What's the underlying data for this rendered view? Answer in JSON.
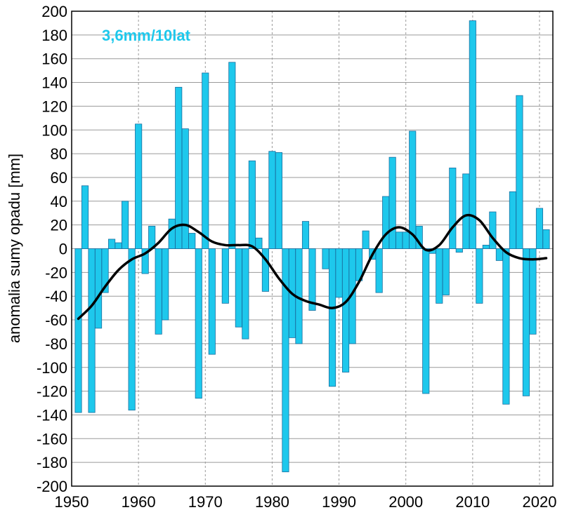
{
  "chart_data": {
    "type": "bar",
    "title": "",
    "xlabel": "",
    "ylabel": "anomalia sumy opadu [mm]",
    "annotation": "3,6mm/10lat",
    "xlim": [
      1950,
      2022
    ],
    "ylim": [
      -200,
      200
    ],
    "yticks": [
      -200,
      -180,
      -160,
      -140,
      -120,
      -100,
      -80,
      -60,
      -40,
      -20,
      0,
      20,
      40,
      60,
      80,
      100,
      120,
      140,
      160,
      180,
      200
    ],
    "xticks": [
      1950,
      1960,
      1970,
      1980,
      1990,
      2000,
      2010,
      2020
    ],
    "grid": true,
    "bar_color": "#1ec8ec",
    "bar_edge_color": "#1a6fa0",
    "line_color": "#000000",
    "annotation_color": "#1ec8ec",
    "series": [
      {
        "name": "anomalia",
        "type": "bar",
        "x": [
          1951,
          1952,
          1953,
          1954,
          1955,
          1956,
          1957,
          1958,
          1959,
          1960,
          1961,
          1962,
          1963,
          1964,
          1965,
          1966,
          1967,
          1968,
          1969,
          1970,
          1971,
          1972,
          1973,
          1974,
          1975,
          1976,
          1977,
          1978,
          1979,
          1980,
          1981,
          1982,
          1983,
          1984,
          1985,
          1986,
          1987,
          1988,
          1989,
          1990,
          1991,
          1992,
          1993,
          1994,
          1995,
          1996,
          1997,
          1998,
          1999,
          2000,
          2001,
          2002,
          2003,
          2004,
          2005,
          2006,
          2007,
          2008,
          2009,
          2010,
          2011,
          2012,
          2013,
          2014,
          2015,
          2016,
          2017,
          2018,
          2019,
          2020,
          2021
        ],
        "values": [
          -138,
          53,
          -138,
          -67,
          -37,
          8,
          5,
          40,
          -136,
          105,
          -21,
          19,
          -72,
          -60,
          25,
          136,
          101,
          13,
          -126,
          148,
          -89,
          0,
          -46,
          157,
          -66,
          -76,
          74,
          9,
          -36,
          82,
          81,
          -188,
          -75,
          -80,
          23,
          -52,
          0,
          -17,
          -116,
          -41,
          -104,
          -80,
          -27,
          15,
          -9,
          -37,
          44,
          77,
          14,
          14,
          99,
          19,
          -122,
          -4,
          -46,
          -39,
          68,
          -3,
          63,
          192,
          -46,
          3,
          31,
          -10,
          -131,
          48,
          129,
          -124,
          -72,
          34,
          16
        ]
      },
      {
        "name": "trend",
        "type": "line",
        "x": [
          1951,
          1953,
          1955,
          1957,
          1959,
          1961,
          1963,
          1965,
          1967,
          1969,
          1971,
          1973,
          1975,
          1977,
          1979,
          1981,
          1983,
          1985,
          1987,
          1989,
          1991,
          1993,
          1995,
          1997,
          1999,
          2001,
          2003,
          2005,
          2007,
          2009,
          2011,
          2013,
          2015,
          2017,
          2019,
          2021
        ],
        "values": [
          -59,
          -48,
          -32,
          -18,
          -9,
          -4,
          5,
          17,
          20,
          14,
          6,
          3,
          3,
          2,
          -9,
          -25,
          -38,
          -44,
          -47,
          -50,
          -45,
          -28,
          -5,
          12,
          18,
          12,
          -1,
          3,
          18,
          28,
          24,
          9,
          -3,
          -8,
          -9,
          -8
        ]
      }
    ]
  }
}
